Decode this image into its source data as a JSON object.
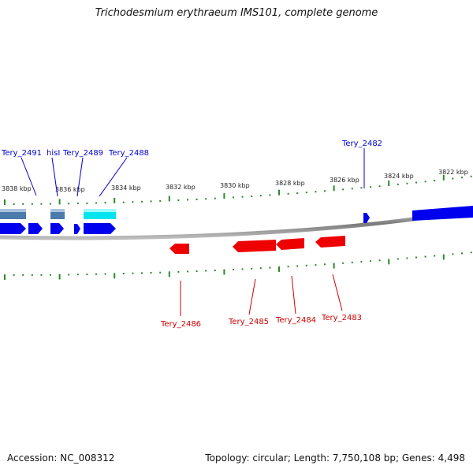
{
  "title": "Trichodesmium erythraeum IMS101, complete genome",
  "footer": {
    "accession": "Accession: NC_008312",
    "summary": "Topology: circular; Length: 7,750,108 bp; Genes: 4,498"
  },
  "colors": {
    "forward_gene": "#0000ee",
    "reverse_gene": "#ee0000",
    "feature_steelblue": "#4a7bab",
    "feature_cyan": "#00e5ee",
    "backbone": "#8a8a8a",
    "ticks": "#2a8a2a",
    "forward_label": "#0000cc",
    "reverse_label": "#cc0000"
  },
  "scale_labels": [
    "3838 kbp",
    "3836 kbp",
    "3834 kbp",
    "3832 kbp",
    "3830 kbp",
    "3828 kbp",
    "3826 kbp",
    "3824 kbp",
    "3822 kbp"
  ],
  "forward_gene_labels": [
    "Tery_2491",
    "hisI",
    "Tery_2489",
    "Tery_2488",
    "Tery_2482"
  ],
  "reverse_gene_labels": [
    "Tery_2486",
    "Tery_2485",
    "Tery_2484",
    "Tery_2483"
  ]
}
